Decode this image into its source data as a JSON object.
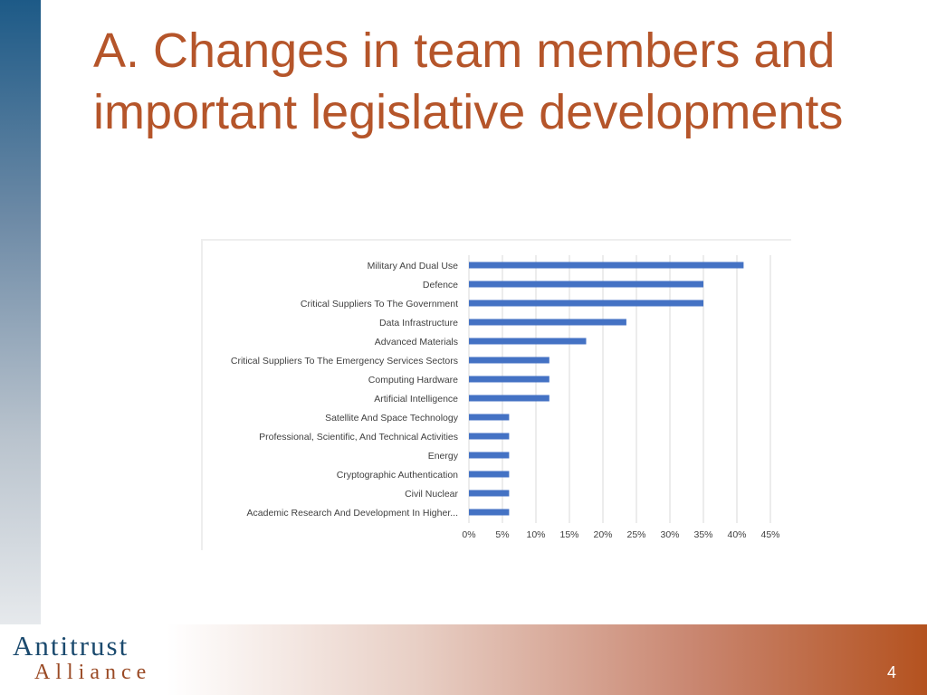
{
  "slide": {
    "title_line1": "A. Changes in team members and",
    "title_line2": "important legislative developments",
    "page_number": "4",
    "logo_line1": "Antitrust",
    "logo_line2": "Alliance"
  },
  "colors": {
    "title": "#b5552a",
    "bar": "#4472c4",
    "grid": "#d9d9d9",
    "logo": "#1b4a6e"
  },
  "chart_data": {
    "type": "bar",
    "orientation": "horizontal",
    "title": "",
    "xlabel": "",
    "ylabel": "",
    "categories": [
      "Military And Dual Use",
      "Defence",
      "Critical Suppliers To The Government",
      "Data Infrastructure",
      "Advanced Materials",
      "Critical Suppliers To The Emergency Services Sectors",
      "Computing Hardware",
      "Artificial Intelligence",
      "Satellite And Space  Technology",
      "Professional, Scientific, And Technical Activities",
      "Energy",
      "Cryptographic Authentication",
      "Civil Nuclear",
      "Academic Research And Development In Higher..."
    ],
    "values": [
      41,
      35,
      35,
      23.5,
      17.5,
      12,
      12,
      12,
      6,
      6,
      6,
      6,
      6,
      6
    ],
    "xlim": [
      0,
      45
    ],
    "ticks": [
      "0%",
      "5%",
      "10%",
      "15%",
      "20%",
      "25%",
      "30%",
      "35%",
      "40%",
      "45%"
    ],
    "tick_values": [
      0,
      5,
      10,
      15,
      20,
      25,
      30,
      35,
      40,
      45
    ],
    "grid": true,
    "legend": "none"
  }
}
